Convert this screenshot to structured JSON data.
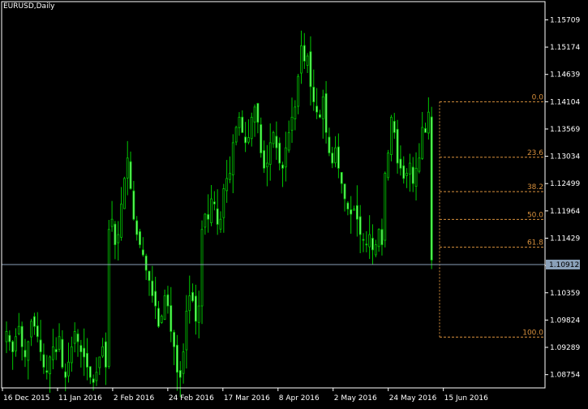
{
  "symbol_title": "EURUSD,Daily",
  "current_price": "1.10912",
  "colors": {
    "background": "#000000",
    "frame": "#ffffff",
    "candle": "#00c800",
    "candle_light": "#7cff7c",
    "fib": "#d8903c",
    "price_line": "#8aa0b8",
    "price_tag_bg": "#8aa0b8",
    "price_tag_text": "#000000"
  },
  "chart_data": {
    "type": "candlestick",
    "symbol": "EURUSD",
    "timeframe": "Daily",
    "y_ticks": [
      "1.15709",
      "1.15174",
      "1.14639",
      "1.14104",
      "1.13569",
      "1.13034",
      "1.12499",
      "1.11964",
      "1.11429",
      "1.10894",
      "1.10359",
      "1.09824",
      "1.09289",
      "1.08754"
    ],
    "x_ticks": [
      "16 Dec 2015",
      "11 Jan 2016",
      "2 Feb 2016",
      "24 Feb 2016",
      "17 Mar 2016",
      "8 Apr 2016",
      "2 May 2016",
      "24 May 2016",
      "15 Jun 2016"
    ],
    "ylim": [
      1.0851,
      1.1605
    ],
    "current_price": 1.10912,
    "fibonacci": {
      "levels": [
        {
          "label": "0.0",
          "price": 1.14104
        },
        {
          "label": "23.6",
          "price": 1.13015
        },
        {
          "label": "38.2",
          "price": 1.12342
        },
        {
          "label": "50.0",
          "price": 1.11797
        },
        {
          "label": "61.8",
          "price": 1.11252
        },
        {
          "label": "100.0",
          "price": 1.0949
        }
      ]
    },
    "series_close": [
      1.096,
      1.094,
      1.092,
      1.095,
      1.097,
      1.093,
      1.091,
      1.094,
      1.098,
      1.097,
      1.095,
      1.092,
      1.089,
      1.088,
      1.091,
      1.093,
      1.092,
      1.095,
      1.089,
      1.087,
      1.09,
      1.093,
      1.096,
      1.094,
      1.092,
      1.091,
      1.089,
      1.087,
      1.086,
      1.088,
      1.091,
      1.093,
      1.089,
      1.116,
      1.118,
      1.113,
      1.115,
      1.121,
      1.126,
      1.13,
      1.124,
      1.118,
      1.115,
      1.113,
      1.111,
      1.108,
      1.106,
      1.103,
      1.101,
      1.097,
      1.099,
      1.103,
      1.101,
      1.096,
      1.093,
      1.088,
      1.087,
      1.092,
      1.1,
      1.103,
      1.102,
      1.098,
      1.101,
      1.116,
      1.119,
      1.118,
      1.122,
      1.121,
      1.117,
      1.118,
      1.124,
      1.126,
      1.127,
      1.133,
      1.136,
      1.138,
      1.135,
      1.133,
      1.134,
      1.138,
      1.14,
      1.137,
      1.131,
      1.128,
      1.129,
      1.133,
      1.135,
      1.132,
      1.129,
      1.128,
      1.132,
      1.135,
      1.138,
      1.14,
      1.146,
      1.152,
      1.149,
      1.15,
      1.144,
      1.141,
      1.139,
      1.138,
      1.142,
      1.135,
      1.131,
      1.129,
      1.132,
      1.128,
      1.125,
      1.122,
      1.12,
      1.119,
      1.12,
      1.118,
      1.115,
      1.114,
      1.113,
      1.115,
      1.112,
      1.113,
      1.116,
      1.113,
      1.127,
      1.131,
      1.138,
      1.135,
      1.129,
      1.128,
      1.126,
      1.127,
      1.129,
      1.125,
      1.128,
      1.13,
      1.136,
      1.135,
      1.139,
      1.11
    ]
  }
}
